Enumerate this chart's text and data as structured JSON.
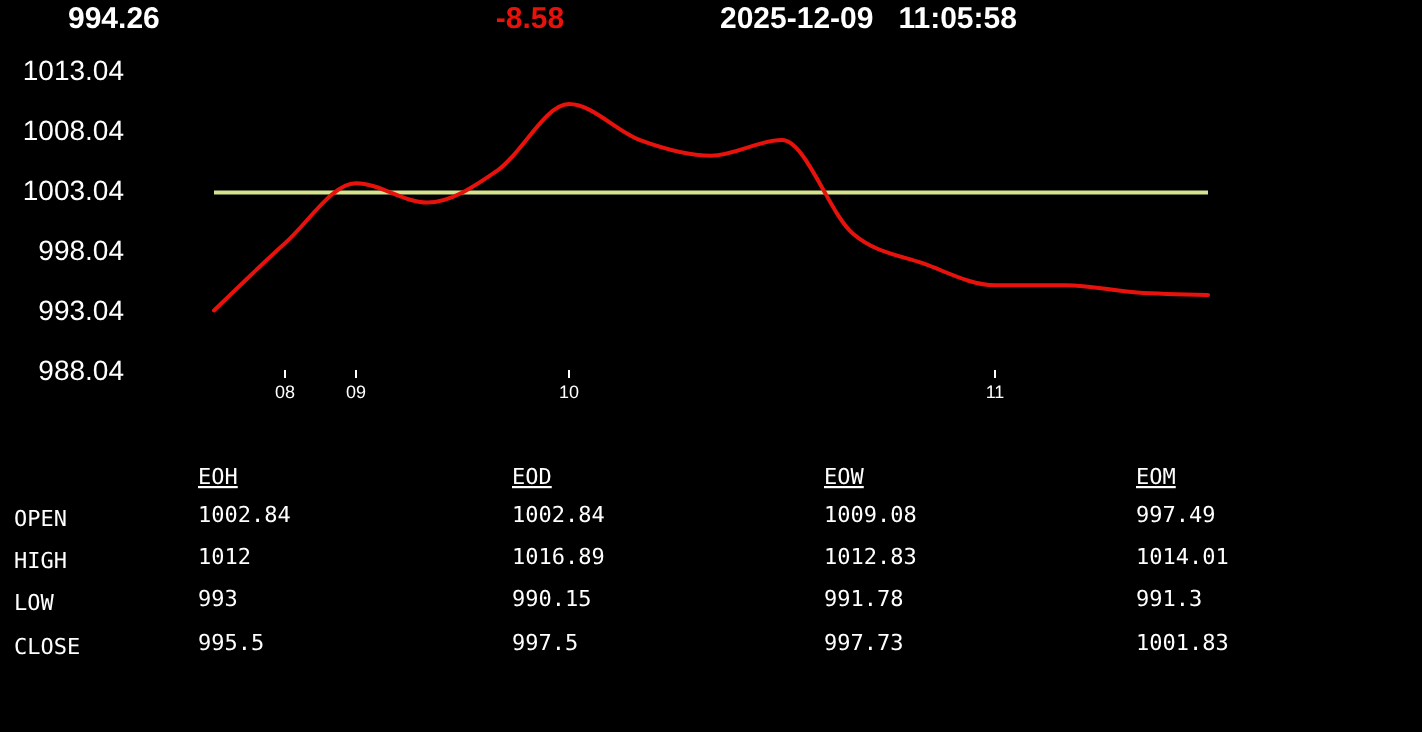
{
  "chart_data": [
    {
      "type": "line",
      "title": "994.26",
      "subtitle": "-8.58",
      "annotations": [
        "2025-12-09   11:05:58"
      ],
      "categories": [
        null,
        "08",
        "09",
        null,
        null,
        "10",
        null,
        null,
        null,
        null,
        null,
        "11",
        null,
        null,
        null
      ],
      "series": [
        {
          "color": "#e8120c",
          "values": [
            993.0,
            998.6,
            1003.6,
            1002.0,
            1004.7,
            1010.2,
            1007.2,
            1005.9,
            1007.2,
            999.4,
            996.9,
            995.1,
            995.1,
            994.5,
            994.3
          ]
        }
      ],
      "ylim": [
        988.04,
        1013.04
      ],
      "yticks": [
        988.04,
        993.04,
        998.04,
        1003.04,
        1008.04,
        1013.04
      ],
      "ref_lines": [
        {
          "axis": "y",
          "value": 1002.84,
          "color": "#d6e28c"
        }
      ],
      "grid": false,
      "marker": "none",
      "line_style": "solid"
    },
    {
      "type": "heatmap",
      "data_labels": true,
      "categories": [
        "EOH",
        "EOD",
        "EOW",
        "EOM"
      ],
      "y_categories": [
        "OPEN",
        "HIGH",
        "LOW",
        "CLOSE"
      ],
      "cells": [
        [
          1002.84,
          1002.84,
          1009.08,
          997.49
        ],
        [
          1012,
          1016.89,
          1012.83,
          1014.01
        ],
        [
          993,
          990.15,
          991.78,
          991.3
        ],
        [
          995.5,
          997.5,
          997.73,
          1001.83
        ]
      ]
    }
  ]
}
